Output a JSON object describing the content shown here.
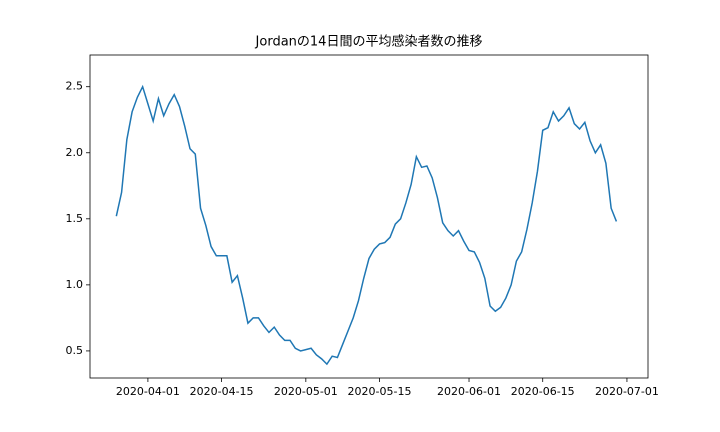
{
  "chart_data": {
    "type": "line",
    "title": "Jordanの14日間の平均感染者数の推移",
    "x": [
      "2020-03-26",
      "2020-03-27",
      "2020-03-28",
      "2020-03-29",
      "2020-03-30",
      "2020-03-31",
      "2020-04-01",
      "2020-04-02",
      "2020-04-03",
      "2020-04-04",
      "2020-04-05",
      "2020-04-06",
      "2020-04-07",
      "2020-04-08",
      "2020-04-09",
      "2020-04-10",
      "2020-04-11",
      "2020-04-12",
      "2020-04-13",
      "2020-04-14",
      "2020-04-15",
      "2020-04-16",
      "2020-04-17",
      "2020-04-18",
      "2020-04-19",
      "2020-04-20",
      "2020-04-21",
      "2020-04-22",
      "2020-04-23",
      "2020-04-24",
      "2020-04-25",
      "2020-04-26",
      "2020-04-27",
      "2020-04-28",
      "2020-04-29",
      "2020-04-30",
      "2020-05-01",
      "2020-05-02",
      "2020-05-03",
      "2020-05-04",
      "2020-05-05",
      "2020-05-06",
      "2020-05-07",
      "2020-05-08",
      "2020-05-09",
      "2020-05-10",
      "2020-05-11",
      "2020-05-12",
      "2020-05-13",
      "2020-05-14",
      "2020-05-15",
      "2020-05-16",
      "2020-05-17",
      "2020-05-18",
      "2020-05-19",
      "2020-05-20",
      "2020-05-21",
      "2020-05-22",
      "2020-05-23",
      "2020-05-24",
      "2020-05-25",
      "2020-05-26",
      "2020-05-27",
      "2020-05-28",
      "2020-05-29",
      "2020-05-30",
      "2020-05-31",
      "2020-06-01",
      "2020-06-02",
      "2020-06-03",
      "2020-06-04",
      "2020-06-05",
      "2020-06-06",
      "2020-06-07",
      "2020-06-08",
      "2020-06-09",
      "2020-06-10",
      "2020-06-11",
      "2020-06-12",
      "2020-06-13",
      "2020-06-14",
      "2020-06-15",
      "2020-06-16",
      "2020-06-17",
      "2020-06-18",
      "2020-06-19",
      "2020-06-20",
      "2020-06-21",
      "2020-06-22",
      "2020-06-23",
      "2020-06-24",
      "2020-06-25",
      "2020-06-26",
      "2020-06-27",
      "2020-06-28",
      "2020-06-29"
    ],
    "series": [
      {
        "color": "#1f77b4",
        "values": [
          1.52,
          1.7,
          2.1,
          2.31,
          2.42,
          2.5,
          2.37,
          2.24,
          2.41,
          2.28,
          2.37,
          2.44,
          2.35,
          2.2,
          2.03,
          1.99,
          1.58,
          1.45,
          1.29,
          1.22,
          1.22,
          1.22,
          1.02,
          1.07,
          0.9,
          0.71,
          0.75,
          0.75,
          0.69,
          0.64,
          0.68,
          0.62,
          0.58,
          0.58,
          0.52,
          0.5,
          0.51,
          0.52,
          0.47,
          0.44,
          0.4,
          0.46,
          0.45,
          0.55,
          0.65,
          0.75,
          0.88,
          1.05,
          1.2,
          1.27,
          1.31,
          1.32,
          1.36,
          1.46,
          1.5,
          1.62,
          1.76,
          1.97,
          1.89,
          1.9,
          1.81,
          1.66,
          1.47,
          1.41,
          1.37,
          1.41,
          1.33,
          1.26,
          1.25,
          1.17,
          1.05,
          0.84,
          0.8,
          0.83,
          0.9,
          1.0,
          1.18,
          1.25,
          1.42,
          1.62,
          1.86,
          2.17,
          2.19,
          2.31,
          2.24,
          2.28,
          2.34,
          2.22,
          2.18,
          2.23,
          2.09,
          2.0,
          2.06,
          1.92,
          1.58,
          1.48
        ]
      }
    ],
    "xlim": [
      "2020-03-21",
      "2020-07-05"
    ],
    "xticks": [
      "2020-04-01",
      "2020-04-15",
      "2020-05-01",
      "2020-05-15",
      "2020-06-01",
      "2020-06-15",
      "2020-07-01"
    ],
    "ylim": [
      0.295,
      2.74
    ],
    "yticks": [
      0.5,
      {
        "value": 1,
        "label": "1.0"
      },
      1.5,
      {
        "value": 2,
        "label": "2.0"
      },
      2.5
    ]
  }
}
